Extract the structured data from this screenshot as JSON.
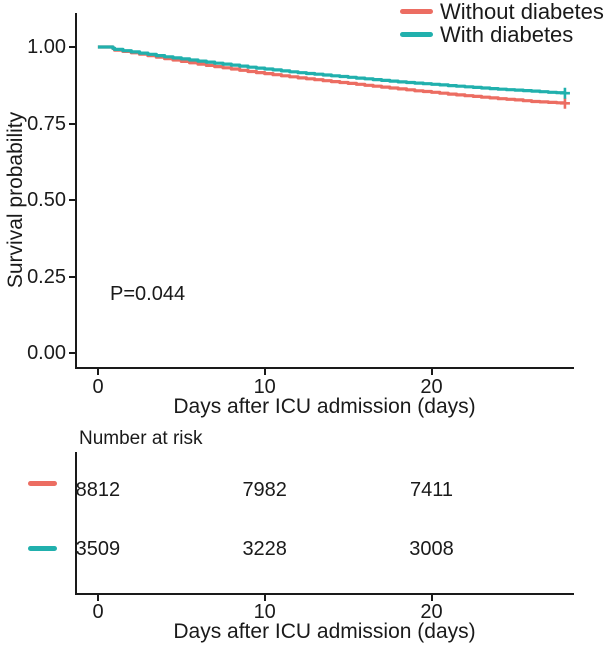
{
  "chart_data": {
    "type": "line",
    "subtype": "kaplan-meier-survival",
    "title": "",
    "xlabel": "Days after ICU admission (days)",
    "ylabel": "Survival probability",
    "x_ticks": [
      "0",
      "10",
      "20"
    ],
    "y_ticks": [
      "0.00",
      "0.25",
      "0.50",
      "0.75",
      "1.00"
    ],
    "xlim": [
      0,
      28.6
    ],
    "ylim": [
      0,
      1.0
    ],
    "grid": "off",
    "legend_position": "top-right",
    "annotation": "P=0.044",
    "colors": {
      "without_diabetes": "#EC6D62",
      "with_diabetes": "#21B0AD",
      "axis": "#1a1a1a"
    },
    "legend": [
      {
        "label": "Without diabetes",
        "color": "#EC6D62"
      },
      {
        "label": "With diabetes",
        "color": "#21B0AD"
      }
    ],
    "series": [
      {
        "name": "Without diabetes",
        "color": "#EC6D62",
        "censor_at_end": true,
        "days": [
          0,
          0.8,
          1,
          2,
          3,
          4,
          5,
          6,
          7,
          8,
          9,
          10,
          11,
          12,
          13,
          14,
          15,
          16,
          17,
          18,
          19,
          20,
          21,
          22,
          23,
          24,
          25,
          26,
          27,
          28
        ],
        "survival": [
          1.0,
          1.0,
          0.99,
          0.981,
          0.972,
          0.962,
          0.953,
          0.944,
          0.936,
          0.928,
          0.92,
          0.913,
          0.906,
          0.899,
          0.893,
          0.887,
          0.881,
          0.875,
          0.869,
          0.863,
          0.857,
          0.852,
          0.846,
          0.841,
          0.836,
          0.831,
          0.827,
          0.822,
          0.819,
          0.816
        ]
      },
      {
        "name": "With diabetes",
        "color": "#21B0AD",
        "censor_at_end": true,
        "days": [
          0,
          0.8,
          1,
          2,
          3,
          4,
          5,
          6,
          7,
          8,
          9,
          10,
          11,
          12,
          13,
          14,
          15,
          16,
          17,
          18,
          19,
          20,
          21,
          22,
          23,
          24,
          25,
          26,
          27,
          28
        ],
        "survival": [
          1.0,
          1.0,
          0.992,
          0.984,
          0.976,
          0.968,
          0.961,
          0.954,
          0.947,
          0.941,
          0.934,
          0.928,
          0.922,
          0.916,
          0.911,
          0.906,
          0.901,
          0.896,
          0.891,
          0.886,
          0.882,
          0.878,
          0.874,
          0.87,
          0.866,
          0.862,
          0.859,
          0.856,
          0.852,
          0.849
        ]
      }
    ],
    "risk_table": {
      "title": "Number at risk",
      "xlabel": "Days after ICU admission (days)",
      "x_ticks": [
        "0",
        "10",
        "20"
      ],
      "rows": [
        {
          "name": "Without diabetes",
          "color": "#EC6D62",
          "values": [
            "8812",
            "7982",
            "7411"
          ]
        },
        {
          "name": "With diabetes",
          "color": "#21B0AD",
          "values": [
            "3509",
            "3228",
            "3008"
          ]
        }
      ]
    }
  }
}
